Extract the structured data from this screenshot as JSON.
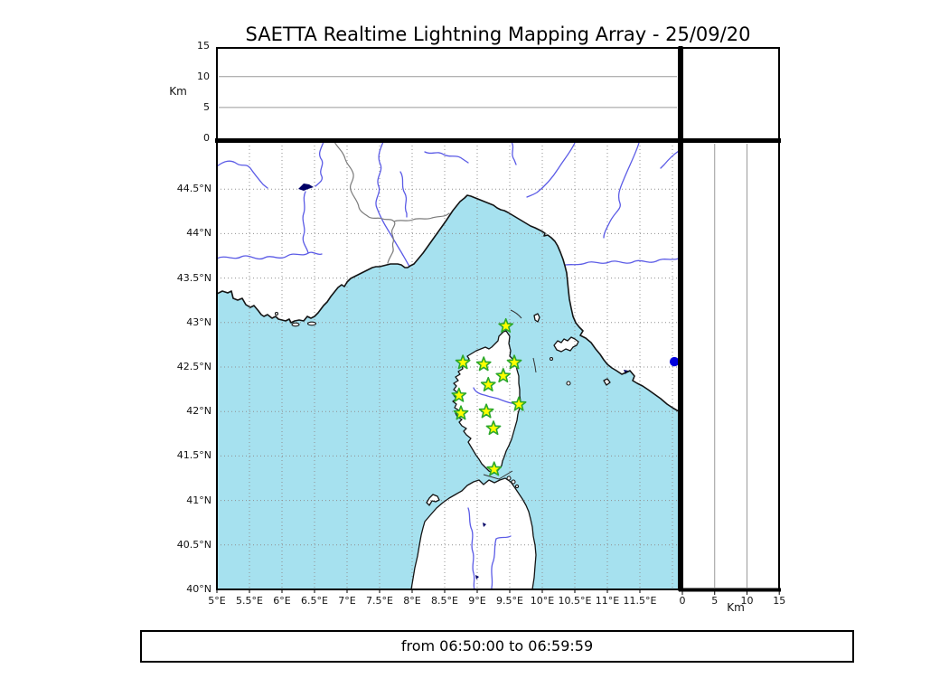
{
  "title": "SAETTA Realtime Lightning Mapping Array - 25/09/20",
  "footer_text": "from 06:50:00 to 06:59:59",
  "axes": {
    "alt_unit_left": "Km",
    "alt_unit_bottom": "Km",
    "alt_ticks": [
      {
        "v": 0,
        "label": "0"
      },
      {
        "v": 5,
        "label": "5"
      },
      {
        "v": 10,
        "label": "10"
      },
      {
        "v": 15,
        "label": "15"
      }
    ],
    "alt_gridlines": [
      5,
      10
    ],
    "lon_ticks": [
      {
        "v": 5,
        "label": "5°E"
      },
      {
        "v": 5.5,
        "label": "5.5°E"
      },
      {
        "v": 6,
        "label": "6°E"
      },
      {
        "v": 6.5,
        "label": "6.5°E"
      },
      {
        "v": 7,
        "label": "7°E"
      },
      {
        "v": 7.5,
        "label": "7.5°E"
      },
      {
        "v": 8,
        "label": "8°E"
      },
      {
        "v": 8.5,
        "label": "8.5°E"
      },
      {
        "v": 9,
        "label": "9°E"
      },
      {
        "v": 9.5,
        "label": "9.5°E"
      },
      {
        "v": 10,
        "label": "10°E"
      },
      {
        "v": 10.5,
        "label": "10.5°E"
      },
      {
        "v": 11,
        "label": "11°E"
      },
      {
        "v": 11.5,
        "label": "11.5°E"
      }
    ],
    "lat_ticks": [
      {
        "v": 40,
        "label": "40°N"
      },
      {
        "v": 40.5,
        "label": "40.5°N"
      },
      {
        "v": 41,
        "label": "41°N"
      },
      {
        "v": 41.5,
        "label": "41.5°N"
      },
      {
        "v": 42,
        "label": "42°N"
      },
      {
        "v": 42.5,
        "label": "42.5°N"
      },
      {
        "v": 43,
        "label": "43°N"
      },
      {
        "v": 43.5,
        "label": "43.5°N"
      },
      {
        "v": 44,
        "label": "44°N"
      },
      {
        "v": 44.5,
        "label": "44.5°N"
      }
    ],
    "lon_gridlines": [
      5.5,
      6,
      6.5,
      7,
      7.5,
      8,
      8.5,
      9,
      9.5,
      10,
      10.5,
      11,
      11.5,
      12
    ],
    "lat_gridlines": [
      40.5,
      41,
      41.5,
      42,
      42.5,
      43,
      43.5,
      44,
      44.5
    ]
  },
  "chart_data": {
    "type": "scatter",
    "title": "SAETTA Realtime Lightning Mapping Array - 25/09/20",
    "time_window": {
      "from": "06:50:00",
      "to": "06:59:59"
    },
    "map_panel": {
      "lon_range": [
        5.0,
        12.1
      ],
      "lat_range": [
        40.0,
        45.03
      ],
      "grid": "dotted 0.5 degree"
    },
    "altitude_panels": {
      "range_km": [
        0,
        15
      ],
      "gridlines_km": [
        5,
        10
      ],
      "unit": "Km",
      "points": []
    },
    "stations": [
      {
        "lon": 9.44,
        "lat": 42.96
      },
      {
        "lon": 8.78,
        "lat": 42.55
      },
      {
        "lon": 9.1,
        "lat": 42.53
      },
      {
        "lon": 9.57,
        "lat": 42.55
      },
      {
        "lon": 9.4,
        "lat": 42.4
      },
      {
        "lon": 9.17,
        "lat": 42.3
      },
      {
        "lon": 8.72,
        "lat": 42.18
      },
      {
        "lon": 9.64,
        "lat": 42.08
      },
      {
        "lon": 8.75,
        "lat": 41.98
      },
      {
        "lon": 9.14,
        "lat": 42.0
      },
      {
        "lon": 9.25,
        "lat": 41.81
      },
      {
        "lon": 9.26,
        "lat": 41.35
      }
    ],
    "detections": [
      {
        "lon": 12.03,
        "lat": 42.56
      }
    ]
  },
  "colors": {
    "sea": "#A6E1EF",
    "river": "#5B5BE6",
    "country_border": "#7b7b7b",
    "grid": "#909090",
    "star_fill": "#FFFF00",
    "star_stroke": "#2CA82C",
    "detection_dot": "#0000DD",
    "lake": "#000066"
  }
}
